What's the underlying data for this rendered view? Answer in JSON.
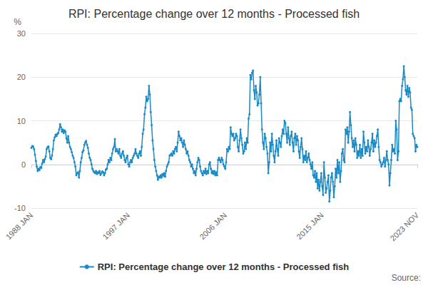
{
  "chart_data": {
    "type": "line",
    "title": "RPI: Percentage change over 12 months - Processed fish",
    "y_label": "%",
    "source": "Source:",
    "categories": [
      "1988 JAN",
      null,
      null,
      null,
      null,
      null,
      null,
      null,
      null,
      null,
      null,
      null,
      null,
      null,
      null,
      null,
      null,
      null,
      null,
      null,
      null,
      null,
      null,
      null,
      null,
      null,
      null,
      null,
      null,
      null,
      null,
      null,
      null,
      null,
      null,
      null,
      null,
      null,
      null,
      null,
      null,
      null,
      null,
      null,
      null,
      null,
      null,
      null,
      null,
      null,
      null,
      null,
      null,
      null,
      null,
      null,
      null,
      null,
      null,
      null,
      null,
      null,
      null,
      null,
      null,
      null,
      null,
      null,
      null,
      null,
      null,
      null,
      null,
      null,
      null,
      null,
      null,
      null,
      null,
      null,
      null,
      null,
      null,
      null,
      null,
      null,
      null,
      null,
      null,
      null,
      null,
      null,
      null,
      null,
      null,
      null,
      null,
      null,
      null,
      null,
      null,
      null,
      null,
      null,
      null,
      null,
      null,
      null,
      "1997 JAN",
      null,
      null,
      null,
      null,
      null,
      null,
      null,
      null,
      null,
      null,
      null,
      null,
      null,
      null,
      null,
      null,
      null,
      null,
      null,
      null,
      null,
      null,
      null,
      null,
      null,
      null,
      null,
      null,
      null,
      null,
      null,
      null,
      null,
      null,
      null,
      null,
      null,
      null,
      null,
      null,
      null,
      null,
      null,
      null,
      null,
      null,
      null,
      null,
      null,
      null,
      null,
      null,
      null,
      null,
      null,
      null,
      null,
      null,
      null,
      null,
      null,
      null,
      null,
      null,
      null,
      null,
      null,
      null,
      null,
      null,
      null,
      null,
      null,
      null,
      null,
      null,
      null,
      null,
      null,
      null,
      null,
      null,
      null,
      null,
      null,
      null,
      null,
      null,
      null,
      null,
      null,
      null,
      null,
      null,
      null,
      null,
      null,
      null,
      null,
      null,
      null,
      null,
      null,
      null,
      null,
      null,
      null,
      "2006 JAN",
      null,
      null,
      null,
      null,
      null,
      null,
      null,
      null,
      null,
      null,
      null,
      null,
      null,
      null,
      null,
      null,
      null,
      null,
      null,
      null,
      null,
      null,
      null,
      null,
      null,
      null,
      null,
      null,
      null,
      null,
      null,
      null,
      null,
      null,
      null,
      null,
      null,
      null,
      null,
      null,
      null,
      null,
      null,
      null,
      null,
      null,
      null,
      null,
      null,
      null,
      null,
      null,
      null,
      null,
      null,
      null,
      null,
      null,
      null,
      null,
      null,
      null,
      null,
      null,
      null,
      null,
      null,
      null,
      null,
      null,
      null,
      null,
      null,
      null,
      null,
      null,
      null,
      null,
      null,
      null,
      null,
      null,
      null,
      null,
      null,
      null,
      null,
      null,
      null,
      null,
      null,
      null,
      null,
      null,
      null,
      null,
      null,
      null,
      null,
      null,
      null,
      null,
      null,
      null,
      null,
      null,
      null,
      "2015 JAN",
      null,
      null,
      null,
      null,
      null,
      null,
      null,
      null,
      null,
      null,
      null,
      null,
      null,
      null,
      null,
      null,
      null,
      null,
      null,
      null,
      null,
      null,
      null,
      null,
      null,
      null,
      null,
      null,
      null,
      null,
      null,
      null,
      null,
      null,
      null,
      null,
      null,
      null,
      null,
      null,
      null,
      null,
      null,
      null,
      null,
      null,
      null,
      null,
      null,
      null,
      null,
      null,
      null,
      null,
      null,
      null,
      null,
      null,
      null,
      null,
      null,
      null,
      null,
      null,
      null,
      null,
      null,
      null,
      null,
      null,
      null,
      null,
      null,
      null,
      null,
      null,
      null,
      null,
      null,
      null,
      null,
      null,
      null,
      null,
      null,
      null,
      null,
      null,
      null,
      null,
      null,
      null,
      null,
      null,
      null,
      null,
      null,
      null,
      null,
      null,
      null,
      null,
      null,
      null,
      null,
      "2023 NOV"
    ],
    "series": [
      {
        "name": "RPI: Percentage change over 12 months - Processed fish",
        "color": "#1a8ac6",
        "marker": "circle",
        "line_style": "solid",
        "values": [
          3.8,
          4.2,
          4.1,
          3.5,
          2.2,
          0.8,
          -0.5,
          -1.5,
          -1.0,
          -1.3,
          -0.6,
          -0.8,
          0.2,
          1.0,
          0.5,
          1.2,
          1.8,
          3.5,
          3.9,
          4.1,
          3.0,
          1.5,
          1.2,
          2.0,
          3.5,
          5.5,
          6.2,
          6.8,
          6.5,
          7.0,
          7.2,
          8.0,
          9.2,
          8.5,
          7.5,
          8.0,
          7.2,
          7.8,
          7.5,
          6.0,
          5.0,
          6.5,
          5.0,
          4.0,
          3.5,
          2.8,
          2.0,
          1.5,
          0.5,
          -0.5,
          -2.5,
          -2.0,
          -1.8,
          -3.0,
          -1.5,
          0.5,
          1.5,
          2.8,
          3.2,
          4.5,
          5.0,
          5.4,
          4.5,
          3.8,
          2.5,
          1.5,
          1.0,
          0.0,
          -1.0,
          -1.5,
          -1.8,
          -2.0,
          -1.5,
          -2.2,
          -1.8,
          -2.0,
          -1.5,
          -2.4,
          -2.0,
          -1.6,
          -1.8,
          -2.5,
          -2.0,
          -1.2,
          -1.0,
          0.0,
          1.0,
          0.5,
          1.5,
          1.0,
          2.5,
          3.5,
          4.0,
          5.8,
          3.0,
          3.5,
          3.0,
          2.5,
          3.5,
          2.0,
          1.5,
          2.5,
          3.0,
          2.0,
          1.0,
          0.5,
          1.5,
          2.0,
          0.0,
          -0.5,
          0.5,
          1.0,
          0.5,
          1.5,
          2.0,
          2.5,
          3.5,
          2.5,
          2.0,
          1.5,
          2.5,
          3.0,
          2.0,
          4.0,
          7.0,
          8.0,
          11.5,
          13.0,
          15.5,
          14.5,
          15.0,
          18.0,
          16.0,
          12.0,
          9.0,
          5.5,
          3.5,
          1.0,
          -0.5,
          -1.5,
          -2.5,
          -3.5,
          -2.8,
          -3.0,
          -2.5,
          -3.0,
          -2.2,
          -2.6,
          -2.0,
          -2.8,
          -1.5,
          -0.5,
          0.0,
          0.5,
          2.0,
          2.2,
          2.5,
          2.0,
          3.0,
          2.5,
          3.5,
          4.0,
          3.0,
          5.0,
          7.5,
          6.5,
          5.5,
          6.0,
          5.0,
          4.0,
          5.5,
          4.5,
          3.5,
          2.5,
          3.0,
          2.0,
          1.0,
          0.5,
          -0.5,
          0.0,
          -1.0,
          -2.0,
          -1.5,
          -2.5,
          -1.0,
          0.5,
          1.5,
          1.0,
          -0.5,
          -1.5,
          -2.0,
          -2.5,
          -1.5,
          -2.0,
          -1.0,
          -2.2,
          -1.5,
          -2.0,
          0.0,
          0.5,
          -1.0,
          -2.0,
          -1.5,
          -2.2,
          -1.5,
          -2.5,
          -1.8,
          -2.5,
          1.0,
          1.5,
          1.0,
          0.5,
          1.5,
          1.0,
          0.0,
          -0.5,
          -1.0,
          0.5,
          3.5,
          3.0,
          4.0,
          3.5,
          8.5,
          7.0,
          6.5,
          7.0,
          5.5,
          6.0,
          7.0,
          6.5,
          4.0,
          3.0,
          5.5,
          8.0,
          6.0,
          4.5,
          2.5,
          3.0,
          5.0,
          3.5,
          6.0,
          5.0,
          10.5,
          11.5,
          20.5,
          19.5,
          21.0,
          21.5,
          17.0,
          15.0,
          18.0,
          16.5,
          13.5,
          14.0,
          16.0,
          20.0,
          14.0,
          8.0,
          5.0,
          3.5,
          7.0,
          6.0,
          4.0,
          2.5,
          -2.0,
          0.5,
          5.0,
          3.0,
          7.0,
          4.5,
          2.0,
          0.5,
          3.0,
          5.5,
          3.5,
          2.0,
          6.0,
          5.0,
          4.0,
          6.5,
          8.0,
          7.0,
          10.0,
          9.5,
          7.0,
          5.0,
          8.5,
          6.0,
          4.5,
          6.5,
          7.5,
          5.0,
          3.0,
          6.0,
          7.0,
          4.5,
          6.5,
          5.5,
          3.0,
          1.5,
          4.0,
          6.0,
          3.5,
          0.5,
          2.0,
          1.0,
          3.0,
          0.5,
          1.5,
          2.5,
          1.0,
          0.0,
          -1.0,
          0.5,
          -2.5,
          -3.0,
          -1.5,
          -4.0,
          -2.0,
          -5.5,
          -3.5,
          -6.0,
          -4.0,
          -2.0,
          -5.0,
          -7.0,
          0.5,
          -3.0,
          -6.5,
          -5.5,
          -4.0,
          -2.5,
          -8.5,
          -6.0,
          -3.0,
          -2.0,
          -4.0,
          -7.5,
          -5.0,
          -1.0,
          -3.0,
          1.0,
          -2.0,
          0.5,
          -4.0,
          -1.5,
          2.5,
          3.5,
          1.0,
          0.5,
          8.0,
          7.0,
          8.5,
          5.0,
          7.5,
          12.0,
          9.0,
          6.0,
          4.0,
          5.5,
          3.0,
          6.0,
          4.5,
          1.5,
          3.0,
          2.0,
          4.5,
          1.5,
          3.5,
          2.0,
          7.5,
          5.0,
          2.5,
          4.0,
          3.0,
          5.5,
          4.0,
          2.0,
          3.5,
          5.0,
          7.0,
          3.0,
          5.5,
          4.0,
          5.0,
          6.5,
          8.0,
          4.0,
          1.0,
          0.5,
          -0.5,
          0.0,
          0.5,
          1.5,
          -0.5,
          1.0,
          3.0,
          1.0,
          0.0,
          -4.8,
          -2.0,
          1.0,
          4.5,
          3.0,
          3.5,
          2.5,
          10.0,
          8.0,
          1.0,
          3.0,
          14.5,
          15.0,
          14.5,
          18.0,
          19.5,
          22.5,
          20.0,
          17.0,
          16.0,
          18.0,
          15.5,
          17.5,
          16.5,
          13.0,
          12.5,
          7.0,
          6.5,
          6.0,
          3.0,
          4.5,
          4.0
        ]
      }
    ],
    "ylim": [
      -10,
      30
    ],
    "yticks": [
      -10,
      0,
      10,
      20,
      30
    ],
    "grid": true,
    "legend": "bottom"
  }
}
